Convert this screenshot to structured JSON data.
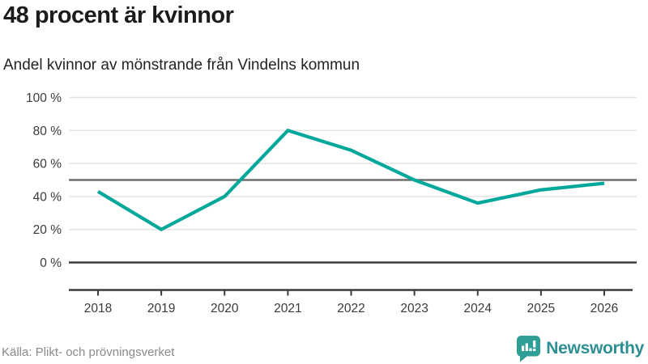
{
  "header": {
    "title": "48 procent är kvinnor",
    "subtitle": "Andel kvinnor av mönstrande från Vindelns kommun"
  },
  "footer": {
    "source": "Källa: Plikt- och prövningsverket",
    "brand_name": "Newsworthy"
  },
  "colors": {
    "line": "#00a79b",
    "reference_line": "#6e6e6e",
    "axis": "#3b3b3b",
    "gridline": "#e3e3e3",
    "tick_label": "#3a3a3a",
    "brand_teal": "#2f9e96",
    "brand_text_teal": "#2d8f92"
  },
  "chart_data": {
    "type": "line",
    "title": "48 procent är kvinnor",
    "subtitle": "Andel kvinnor av mönstrande från Vindelns kommun",
    "categories": [
      "2018",
      "2019",
      "2020",
      "2021",
      "2022",
      "2023",
      "2024",
      "2025",
      "2026"
    ],
    "series": [
      {
        "name": "Andel kvinnor av mönstrande från Vindelns kommun",
        "values": [
          43,
          20,
          40,
          80,
          68,
          50,
          36,
          44,
          48
        ],
        "color": "#00a79b"
      }
    ],
    "unit": "%",
    "ylim": [
      0,
      100
    ],
    "yticks": [
      0,
      20,
      40,
      60,
      80,
      100
    ],
    "ytick_labels": [
      "0 %",
      "20 %",
      "40 %",
      "60 %",
      "80 %",
      "100 %"
    ],
    "reference_line": 50,
    "grid": true,
    "legend": "none",
    "source": "Källa: Plikt- och prövningsverket"
  }
}
